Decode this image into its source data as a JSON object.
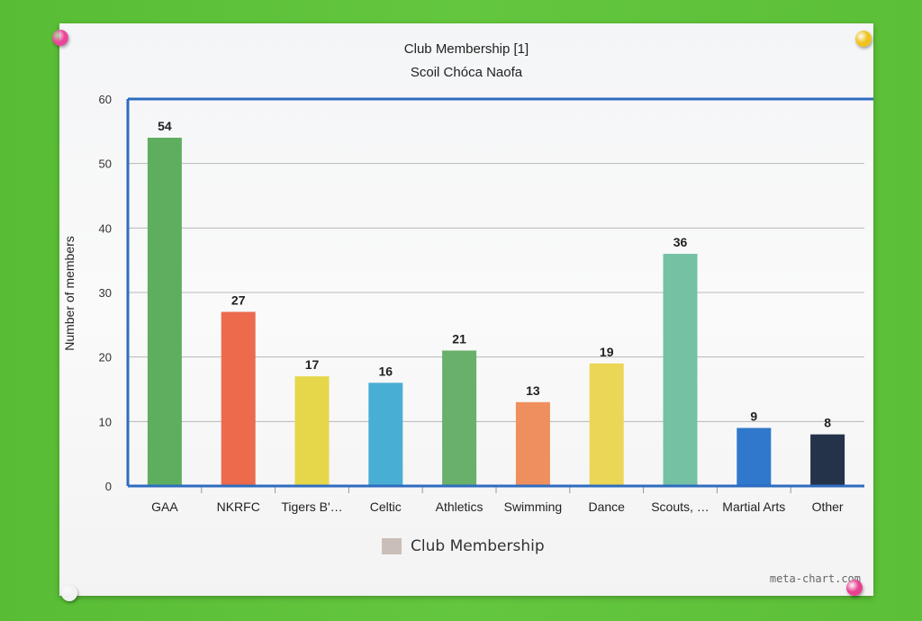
{
  "chart_data": {
    "type": "bar",
    "title": "Club Membership [1]",
    "subtitle": "Scoil Chóca Naofa",
    "xlabel": "",
    "ylabel": "Number of members",
    "ylim": [
      0,
      60
    ],
    "yticks": [
      0,
      10,
      20,
      30,
      40,
      50,
      60
    ],
    "categories": [
      "GAA",
      "NKRFC",
      "Tigers B'…",
      "Celtic",
      "Athletics",
      "Swimming",
      "Dance",
      "Scouts, …",
      "Martial Arts",
      "Other"
    ],
    "series": [
      {
        "name": "Club Membership",
        "values": [
          54,
          27,
          17,
          16,
          21,
          13,
          19,
          36,
          9,
          8
        ]
      }
    ],
    "bar_colors": [
      "#5fae5f",
      "#ec6b4d",
      "#e6d64a",
      "#49aed4",
      "#69b06a",
      "#ef8f5e",
      "#ecd655",
      "#74c1a4",
      "#2f78cc",
      "#24324a"
    ],
    "legend": {
      "label": "Club Membership",
      "color": "#cabfb8",
      "position": "bottom"
    },
    "grid": true
  },
  "credit": "meta-chart.com",
  "colors": {
    "board": "#5fc23a",
    "axis": "#2e6cc0",
    "grid": "#b9b9b9"
  },
  "pins": [
    {
      "name": "pin-top-left",
      "color": "#e8489a"
    },
    {
      "name": "pin-top-right",
      "color": "#f0c21c"
    },
    {
      "name": "pin-bottom-left",
      "color": "#f2f2f2"
    },
    {
      "name": "pin-bottom-right",
      "color": "#e8408f"
    }
  ]
}
